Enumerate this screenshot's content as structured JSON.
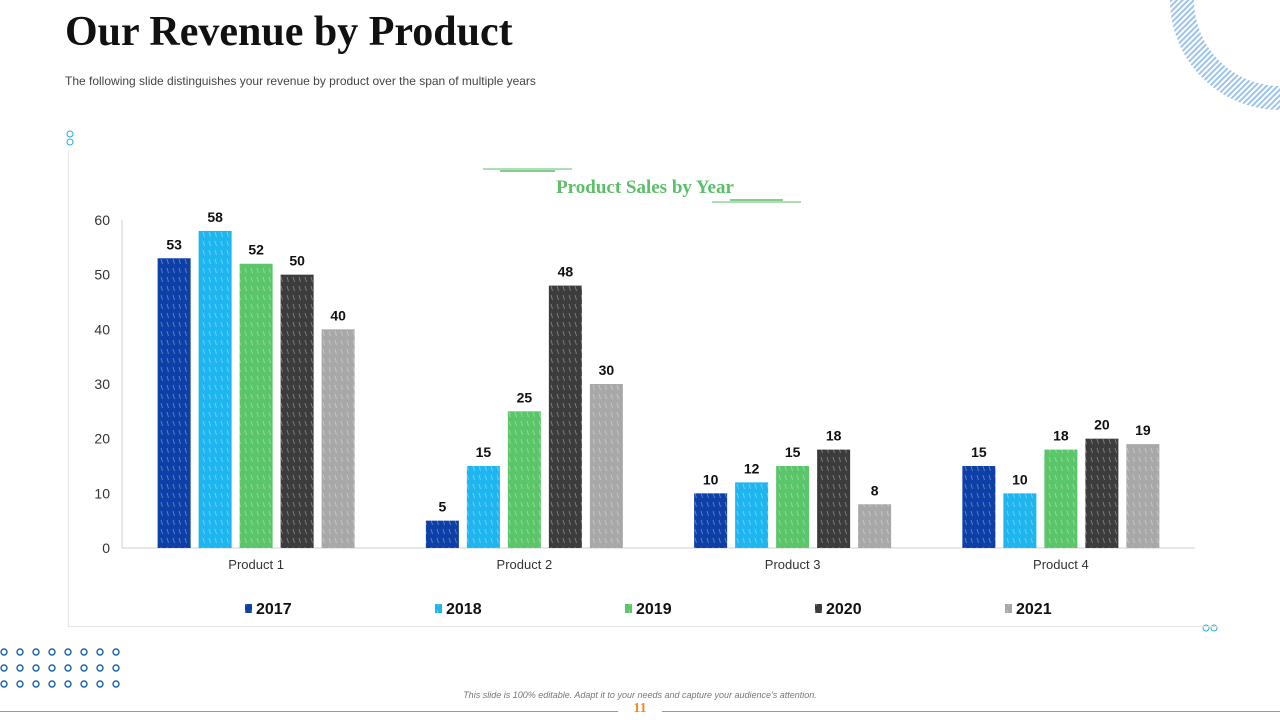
{
  "slide": {
    "title": "Our Revenue by Product",
    "subtitle": "The following slide distinguishes your revenue  by product over the span of multiple years",
    "footer_note": "This slide is 100% editable. Adapt it to your needs and capture your audience's attention.",
    "page_number": "11"
  },
  "colors": {
    "s2017": "#0d3fa6",
    "s2018": "#1fb6f0",
    "s2019": "#5bc56a",
    "s2020": "#3c3c3c",
    "s2021": "#a8a8a8",
    "chart_title": "#5cbf6a",
    "accent": "#1a5fb4"
  },
  "chart_data": {
    "type": "bar",
    "title": "Product Sales by Year",
    "categories": [
      "Product 1",
      "Product 2",
      "Product 3",
      "Product 4"
    ],
    "series": [
      {
        "name": "2017",
        "color": "#0d3fa6",
        "values": [
          53,
          5,
          10,
          15
        ]
      },
      {
        "name": "2018",
        "color": "#1fb6f0",
        "values": [
          58,
          15,
          12,
          10
        ]
      },
      {
        "name": "2019",
        "color": "#5bc56a",
        "values": [
          52,
          25,
          15,
          18
        ]
      },
      {
        "name": "2020",
        "color": "#3c3c3c",
        "values": [
          50,
          48,
          18,
          20
        ]
      },
      {
        "name": "2021",
        "color": "#a8a8a8",
        "values": [
          40,
          30,
          8,
          19
        ]
      }
    ],
    "ylim": [
      0,
      60
    ],
    "yticks": [
      0,
      10,
      20,
      30,
      40,
      50,
      60
    ],
    "xlabel": "",
    "ylabel": "",
    "legend": "bottom",
    "grid": false
  }
}
